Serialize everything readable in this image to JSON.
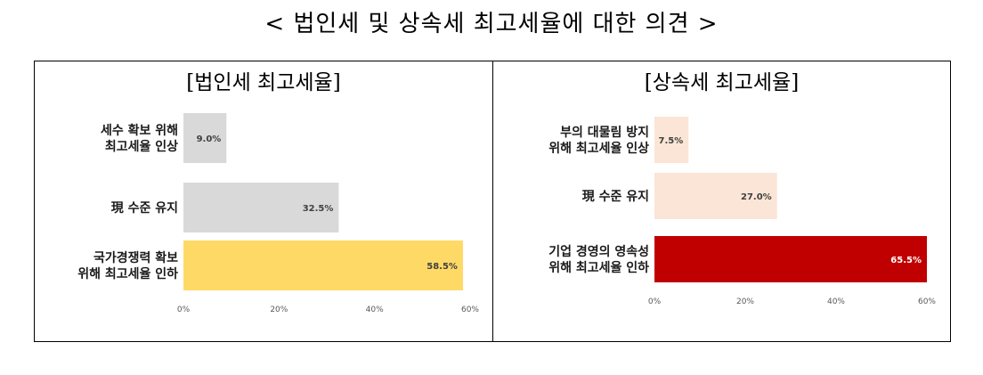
{
  "title": "< 법인세 및 상속세 최고세율에 대한 의견 >",
  "chart_data": [
    {
      "type": "bar",
      "orientation": "horizontal",
      "title": "[법인세 최고세율]",
      "categories": [
        "세수 확보 위해\n최고세율 인상",
        "現 수준 유지",
        "국가경쟁력 확보\n위해 최고세율 인하"
      ],
      "values": [
        9.0,
        32.5,
        58.5
      ],
      "value_labels": [
        "9.0%",
        "32.5%",
        "58.5%"
      ],
      "colors": [
        "#d9d9d9",
        "#d9d9d9",
        "#ffd966"
      ],
      "xlim": [
        0,
        60
      ],
      "xticks": [
        "0%",
        "20%",
        "40%",
        "60%"
      ],
      "grid": false
    },
    {
      "type": "bar",
      "orientation": "horizontal",
      "title": "[상속세 최고세율]",
      "categories": [
        "부의 대물림 방지\n위해 최고세율 인상",
        "現 수준 유지",
        "기업 경영의 영속성\n위해 최고세율 인하"
      ],
      "values": [
        7.5,
        27.0,
        65.5
      ],
      "value_labels": [
        "7.5%",
        "27.0%",
        "65.5%"
      ],
      "colors": [
        "#fbe5d6",
        "#fbe5d6",
        "#c00000"
      ],
      "value_label_colors": [
        "#404040",
        "#404040",
        "#ffffff"
      ],
      "xlim": [
        0,
        60
      ],
      "xticks": [
        "0%",
        "20%",
        "40%",
        "60%"
      ],
      "grid": false
    }
  ]
}
